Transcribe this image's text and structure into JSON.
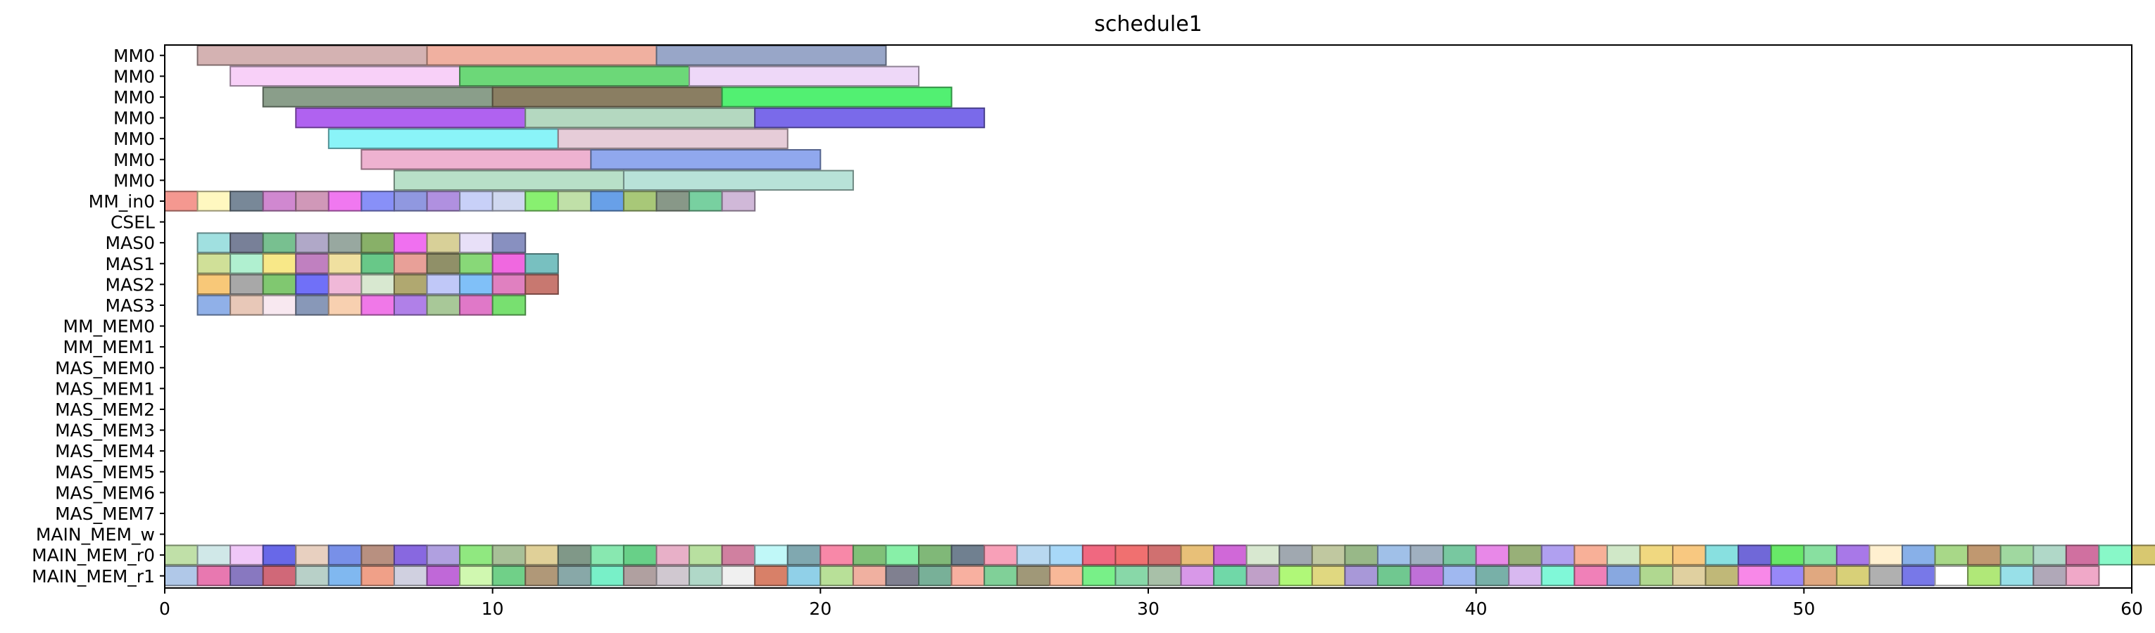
{
  "chart_data": {
    "type": "gantt",
    "title": "schedule1",
    "xlabel": "",
    "ylabel": "",
    "xlim": [
      0,
      60
    ],
    "x_ticks": [
      0,
      10,
      20,
      30,
      40,
      50,
      60
    ],
    "grid": false,
    "rows": [
      "MM0",
      "MM0",
      "MM0",
      "MM0",
      "MM0",
      "MM0",
      "MM0",
      "MM_in0",
      "CSEL",
      "MAS0",
      "MAS1",
      "MAS2",
      "MAS3",
      "MM_MEM0",
      "MM_MEM1",
      "MAS_MEM0",
      "MAS_MEM1",
      "MAS_MEM2",
      "MAS_MEM3",
      "MAS_MEM4",
      "MAS_MEM5",
      "MAS_MEM6",
      "MAS_MEM7",
      "MAIN_MEM_w",
      "MAIN_MEM_r0",
      "MAIN_MEM_r1"
    ],
    "tasks": [
      {
        "row": 0,
        "start": 1,
        "end": 8,
        "color": "#d4b2b2"
      },
      {
        "row": 0,
        "start": 8,
        "end": 15,
        "color": "#f0b0a0"
      },
      {
        "row": 0,
        "start": 15,
        "end": 22,
        "color": "#98a6c8"
      },
      {
        "row": 1,
        "start": 2,
        "end": 9,
        "color": "#f8d0f8"
      },
      {
        "row": 1,
        "start": 9,
        "end": 16,
        "color": "#6cd878"
      },
      {
        "row": 1,
        "start": 16,
        "end": 23,
        "color": "#eed8f8"
      },
      {
        "row": 2,
        "start": 3,
        "end": 10,
        "color": "#8a9e8a"
      },
      {
        "row": 2,
        "start": 10,
        "end": 17,
        "color": "#8a7e62"
      },
      {
        "row": 2,
        "start": 17,
        "end": 24,
        "color": "#52f072"
      },
      {
        "row": 3,
        "start": 4,
        "end": 11,
        "color": "#b062f0"
      },
      {
        "row": 3,
        "start": 11,
        "end": 18,
        "color": "#b4d8c0"
      },
      {
        "row": 3,
        "start": 18,
        "end": 25,
        "color": "#7a6aea"
      },
      {
        "row": 4,
        "start": 5,
        "end": 12,
        "color": "#8af4f8"
      },
      {
        "row": 4,
        "start": 12,
        "end": 19,
        "color": "#e6ccd8"
      },
      {
        "row": 5,
        "start": 6,
        "end": 13,
        "color": "#eeb2d0"
      },
      {
        "row": 5,
        "start": 13,
        "end": 20,
        "color": "#90a8ee"
      },
      {
        "row": 6,
        "start": 7,
        "end": 14,
        "color": "#b8e0c8"
      },
      {
        "row": 6,
        "start": 14,
        "end": 21,
        "color": "#b8e2d8"
      },
      {
        "row": 7,
        "start": 0,
        "end": 1,
        "color": "#f49890"
      },
      {
        "row": 7,
        "start": 1,
        "end": 2,
        "color": "#fff8c0"
      },
      {
        "row": 7,
        "start": 2,
        "end": 3,
        "color": "#788898"
      },
      {
        "row": 7,
        "start": 3,
        "end": 4,
        "color": "#d088d0"
      },
      {
        "row": 7,
        "start": 4,
        "end": 5,
        "color": "#d098b8"
      },
      {
        "row": 7,
        "start": 5,
        "end": 6,
        "color": "#f078f0"
      },
      {
        "row": 7,
        "start": 6,
        "end": 7,
        "color": "#8890f8"
      },
      {
        "row": 7,
        "start": 7,
        "end": 8,
        "color": "#9098e0"
      },
      {
        "row": 7,
        "start": 8,
        "end": 9,
        "color": "#b090e0"
      },
      {
        "row": 7,
        "start": 9,
        "end": 10,
        "color": "#c8d0f8"
      },
      {
        "row": 7,
        "start": 10,
        "end": 11,
        "color": "#d0d8f0"
      },
      {
        "row": 7,
        "start": 11,
        "end": 12,
        "color": "#88f070"
      },
      {
        "row": 7,
        "start": 12,
        "end": 13,
        "color": "#c0e0a8"
      },
      {
        "row": 7,
        "start": 13,
        "end": 14,
        "color": "#68a0e8"
      },
      {
        "row": 7,
        "start": 14,
        "end": 15,
        "color": "#a8c878"
      },
      {
        "row": 7,
        "start": 15,
        "end": 16,
        "color": "#889888"
      },
      {
        "row": 7,
        "start": 16,
        "end": 17,
        "color": "#78d0a0"
      },
      {
        "row": 7,
        "start": 17,
        "end": 18,
        "color": "#d0b8d8"
      },
      {
        "row": 9,
        "start": 1,
        "end": 2,
        "color": "#a0e0e0"
      },
      {
        "row": 9,
        "start": 2,
        "end": 3,
        "color": "#788098"
      },
      {
        "row": 9,
        "start": 3,
        "end": 4,
        "color": "#78c090"
      },
      {
        "row": 9,
        "start": 4,
        "end": 5,
        "color": "#b0a8c8"
      },
      {
        "row": 9,
        "start": 5,
        "end": 6,
        "color": "#98a8a0"
      },
      {
        "row": 9,
        "start": 6,
        "end": 7,
        "color": "#88b068"
      },
      {
        "row": 9,
        "start": 7,
        "end": 8,
        "color": "#f070f0"
      },
      {
        "row": 9,
        "start": 8,
        "end": 9,
        "color": "#d8d098"
      },
      {
        "row": 9,
        "start": 9,
        "end": 10,
        "color": "#e8e0f8"
      },
      {
        "row": 9,
        "start": 10,
        "end": 11,
        "color": "#8890c0"
      },
      {
        "row": 10,
        "start": 1,
        "end": 2,
        "color": "#d0e098"
      },
      {
        "row": 10,
        "start": 2,
        "end": 3,
        "color": "#b0f0d0"
      },
      {
        "row": 10,
        "start": 3,
        "end": 4,
        "color": "#f8e888"
      },
      {
        "row": 10,
        "start": 4,
        "end": 5,
        "color": "#c080c0"
      },
      {
        "row": 10,
        "start": 5,
        "end": 6,
        "color": "#f0e0a0"
      },
      {
        "row": 10,
        "start": 6,
        "end": 7,
        "color": "#68c888"
      },
      {
        "row": 10,
        "start": 7,
        "end": 8,
        "color": "#e8a098"
      },
      {
        "row": 10,
        "start": 8,
        "end": 9,
        "color": "#909068"
      },
      {
        "row": 10,
        "start": 9,
        "end": 10,
        "color": "#88d878"
      },
      {
        "row": 10,
        "start": 10,
        "end": 11,
        "color": "#f068e0"
      },
      {
        "row": 10,
        "start": 11,
        "end": 12,
        "color": "#78c0c0"
      },
      {
        "row": 11,
        "start": 1,
        "end": 2,
        "color": "#f8c878"
      },
      {
        "row": 11,
        "start": 2,
        "end": 3,
        "color": "#a8a8a8"
      },
      {
        "row": 11,
        "start": 3,
        "end": 4,
        "color": "#80c870"
      },
      {
        "row": 11,
        "start": 4,
        "end": 5,
        "color": "#7070f8"
      },
      {
        "row": 11,
        "start": 5,
        "end": 6,
        "color": "#f0b8d8"
      },
      {
        "row": 11,
        "start": 6,
        "end": 7,
        "color": "#d8e8d0"
      },
      {
        "row": 11,
        "start": 7,
        "end": 8,
        "color": "#b0a870"
      },
      {
        "row": 11,
        "start": 8,
        "end": 9,
        "color": "#c0c8f8"
      },
      {
        "row": 11,
        "start": 9,
        "end": 10,
        "color": "#80c0f8"
      },
      {
        "row": 11,
        "start": 10,
        "end": 11,
        "color": "#e080c0"
      },
      {
        "row": 11,
        "start": 11,
        "end": 12,
        "color": "#c87870"
      },
      {
        "row": 12,
        "start": 1,
        "end": 2,
        "color": "#90b0e8"
      },
      {
        "row": 12,
        "start": 2,
        "end": 3,
        "color": "#e8c8b8"
      },
      {
        "row": 12,
        "start": 3,
        "end": 4,
        "color": "#f8e8f0"
      },
      {
        "row": 12,
        "start": 4,
        "end": 5,
        "color": "#8898b8"
      },
      {
        "row": 12,
        "start": 5,
        "end": 6,
        "color": "#f8d0b0"
      },
      {
        "row": 12,
        "start": 6,
        "end": 7,
        "color": "#f078e8"
      },
      {
        "row": 12,
        "start": 7,
        "end": 8,
        "color": "#b080e8"
      },
      {
        "row": 12,
        "start": 8,
        "end": 9,
        "color": "#a8c898"
      },
      {
        "row": 12,
        "start": 9,
        "end": 10,
        "color": "#e078c8"
      },
      {
        "row": 12,
        "start": 10,
        "end": 11,
        "color": "#78e070"
      }
    ],
    "memory_rows": [
      {
        "row": 24,
        "start": 0,
        "colors": [
          "#c0e0a8",
          "#d0e8e8",
          "#f0c8f8",
          "#6868e8",
          "#e8d0c0",
          "#7890e8",
          "#b89080",
          "#8868e0",
          "#b0a0e0",
          "#90e880",
          "#a8c098",
          "#e0d098",
          "#809888",
          "#88e8b0",
          "#68d088",
          "#e8b0c8",
          "#b8e0a0",
          "#d080a0",
          "#c0f8f8",
          "#80a8b0",
          "#f888a8",
          "#80c078",
          "#88f0a8",
          "#80b878",
          "#708090",
          "#f8a0b8",
          "#b8d8f0",
          "#a8d8f8",
          "#f06880",
          "#f07070",
          "#d07070",
          "#e8c078",
          "#d068d8",
          "#d8e8d0",
          "#a0a8b0",
          "#c0c8a0",
          "#98b888",
          "#a0c0e8",
          "#a0b0c0",
          "#78c8a0",
          "#e888e8",
          "#98b078",
          "#b0a0f0",
          "#f8b098",
          "#d0e8c8",
          "#f0d880",
          "#f8c880",
          "#88e0e0",
          "#7068d8",
          "#68e868",
          "#88e0a0",
          "#a878e8",
          "#fff0d0",
          "#88b0e8",
          "#a8d888",
          "#c09870",
          "#a0d8a0",
          "#b0d8c8",
          "#d070a0",
          "#88f8c8",
          "#d8c870"
        ]
      },
      {
        "row": 25,
        "start": 0,
        "colors": [
          "#b0c8e8",
          "#e878b0",
          "#8878c0",
          "#d06878",
          "#b8d0c8",
          "#80b8f0",
          "#f0a088",
          "#d0d0e0",
          "#c068d8",
          "#d0f8b0",
          "#70d088",
          "#b09878",
          "#88a8a8",
          "#78f0c8",
          "#b0a0a0",
          "#d0c8d0",
          "#b0d8c8",
          "#f0f0f0",
          "#d88068",
          "#90d0e8",
          "#b8e098",
          "#f0b0a0",
          "#808090",
          "#78b098",
          "#f8b0a0",
          "#80d098",
          "#a09878",
          "#f8b898",
          "#78f088",
          "#88d8a8",
          "#a8c0a8",
          "#d898e8",
          "#70d8a8",
          "#c0a0c8",
          "#b0f878",
          "#e0d880",
          "#a898d8",
          "#70c890",
          "#c070d8",
          "#a0b8f0",
          "#78b0a8",
          "#d8b8f0",
          "#80f8d8",
          "#f080b8",
          "#88a8e0",
          "#b0d890",
          "#e0d0a0",
          "#c0b878",
          "#f888e8",
          "#9888f8",
          "#e0a880",
          "#d8d078",
          "#b0b0b0",
          "#7878e8",
          "#ffffff",
          "#b0e878",
          "#98e0e8",
          "#b0a8b8",
          "#f0a8c8"
        ]
      }
    ]
  }
}
